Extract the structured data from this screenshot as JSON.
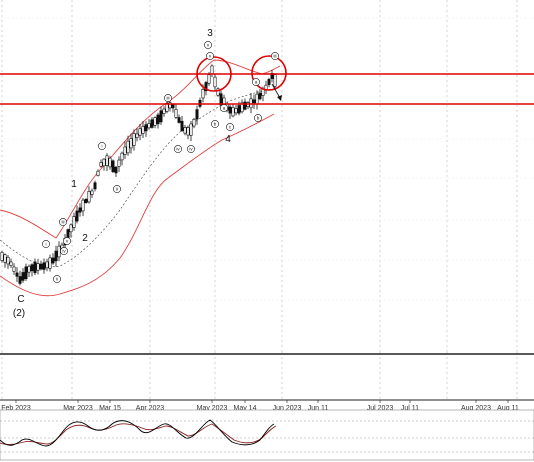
{
  "chart_data": {
    "type": "candlestick",
    "title": "",
    "x_tick_labels": [
      "Feb 2023",
      "Mar 2023",
      "Mar 15",
      "Apr 2023",
      "May 2023",
      "May 14",
      "Jun 2023",
      "Jun 11",
      "Jul 2023",
      "Jul 11",
      "Aug 2023",
      "Aug 11"
    ],
    "wave_labels": [
      {
        "text": "C"
      },
      {
        "text": "(2)"
      },
      {
        "text": "1"
      },
      {
        "text": "2"
      },
      {
        "text": "3"
      },
      {
        "text": "4"
      }
    ],
    "sub_wave_labels": [
      {
        "text": "i"
      },
      {
        "text": "ii"
      },
      {
        "text": "iii"
      },
      {
        "text": "iv"
      },
      {
        "text": "v"
      },
      {
        "text": "a"
      },
      {
        "text": "b"
      },
      {
        "text": "c"
      }
    ],
    "sub_wave_label_positions": [
      [
        "i",
        46,
        244
      ],
      [
        "ii",
        57,
        279
      ],
      [
        "iii",
        63,
        222
      ],
      [
        "iv",
        64,
        251
      ],
      [
        "v",
        67,
        241
      ],
      [
        "i",
        102,
        146
      ],
      [
        "ii",
        117,
        189
      ],
      [
        "iii",
        168,
        98
      ],
      [
        "iv",
        178,
        149
      ],
      [
        "iv",
        191,
        149
      ],
      [
        "v",
        208,
        45
      ],
      [
        "v",
        210,
        56
      ],
      [
        "a",
        224,
        108
      ],
      [
        "b",
        215,
        124
      ],
      [
        "c",
        230,
        127
      ],
      [
        "a",
        256,
        82
      ],
      [
        "b",
        258,
        118
      ],
      [
        "iii",
        275,
        56
      ]
    ],
    "resistance_lines": [
      {
        "color": "#e00000"
      },
      {
        "color": "#e00000"
      }
    ],
    "highlight_circles": 2,
    "oscillator": {
      "type": "stochastic",
      "colors": [
        "#000000",
        "#8b2020"
      ]
    },
    "colors": {
      "bullish": "#ffffff",
      "bearish": "#111111",
      "candle_outline": "#111111",
      "envelope": "#e04040",
      "mid_line": "#555555",
      "grid": "#c8c8c8",
      "resistance": "#e00000"
    },
    "grid": true
  }
}
